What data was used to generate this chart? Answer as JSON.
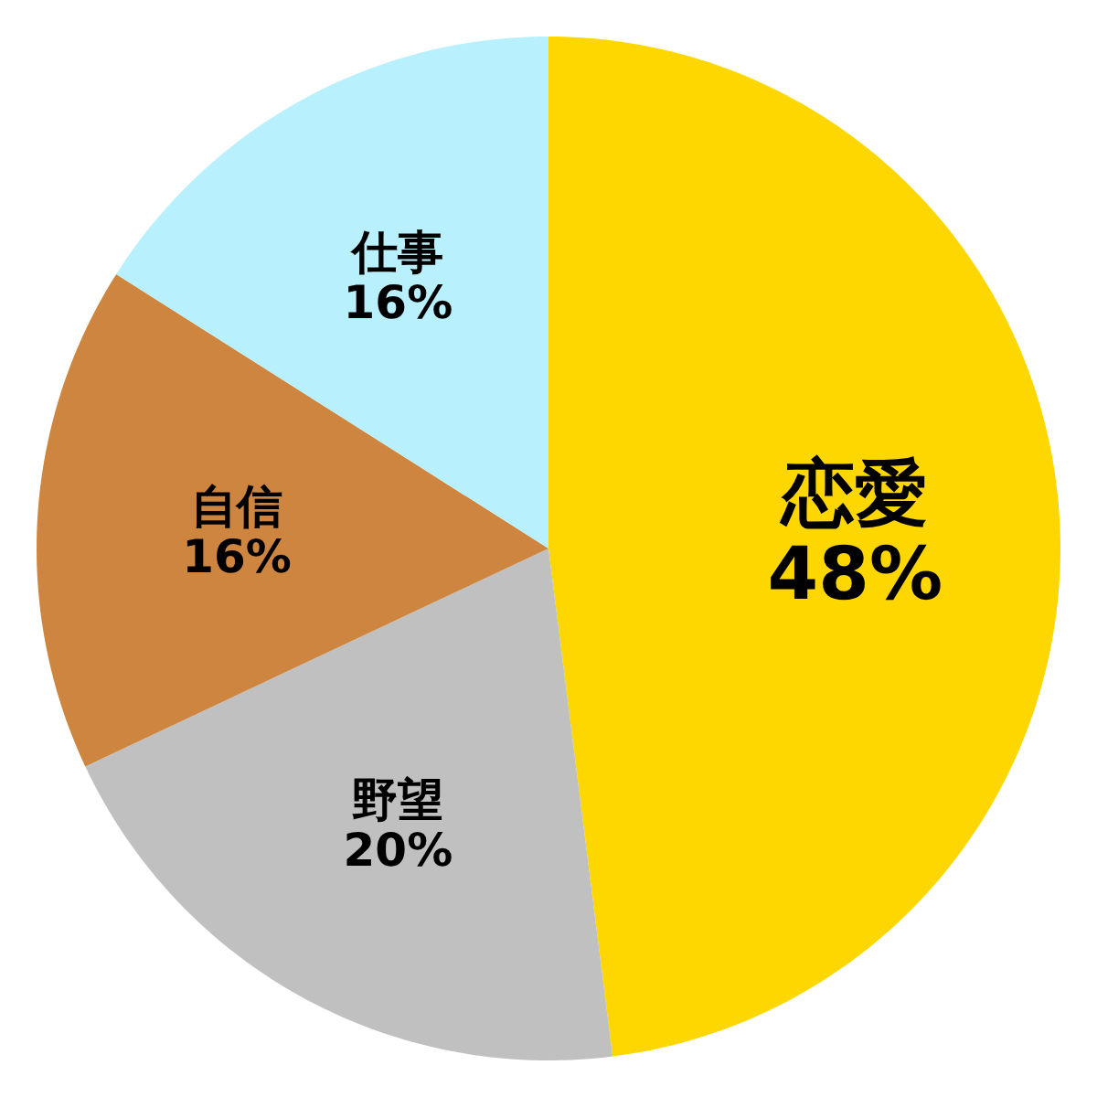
{
  "chart_data": {
    "type": "pie",
    "categories": [
      "恋愛",
      "野望",
      "自信",
      "仕事"
    ],
    "values": [
      48,
      20,
      16,
      16
    ],
    "value_labels": [
      "48%",
      "20%",
      "16%",
      "16%"
    ],
    "colors": [
      "#ffd700",
      "#c0c0c0",
      "#cd853f",
      "#b8f0fe"
    ]
  }
}
